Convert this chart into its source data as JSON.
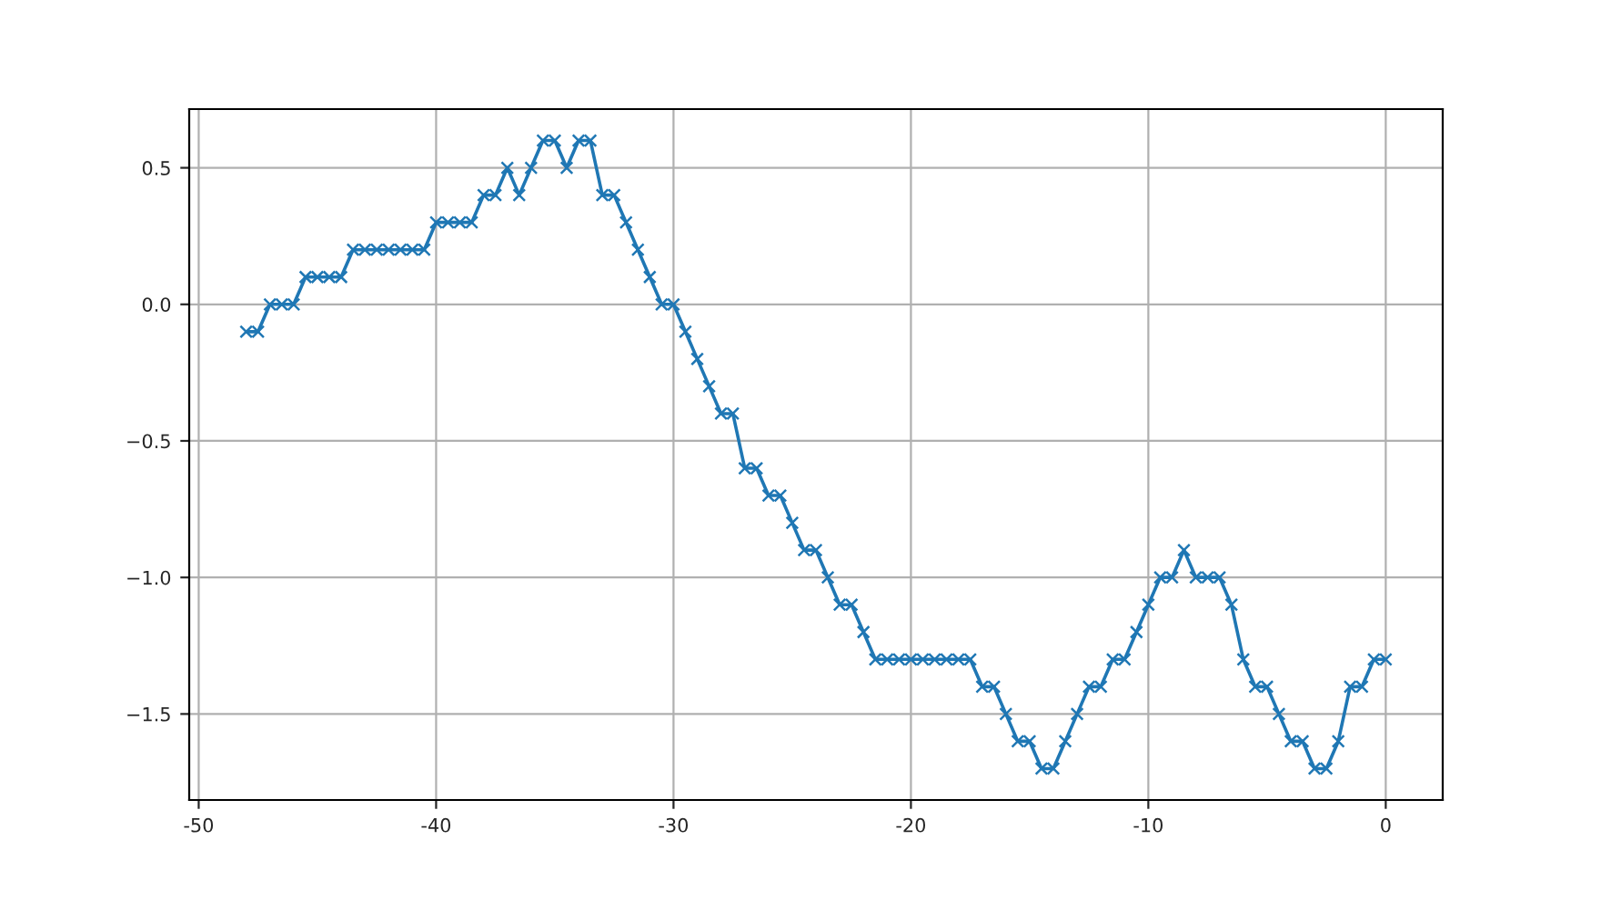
{
  "chart_data": {
    "type": "line",
    "marker": "cross",
    "line_style": "solid",
    "grid": true,
    "x": [
      -48,
      -47.5,
      -47,
      -46.5,
      -46,
      -45.5,
      -45,
      -44.5,
      -44,
      -43.5,
      -43,
      -42.5,
      -42,
      -41.5,
      -41,
      -40.5,
      -40,
      -39.5,
      -39,
      -38.5,
      -38,
      -37.5,
      -37,
      -36.5,
      -36,
      -35.5,
      -35,
      -34.5,
      -34,
      -33.5,
      -33,
      -32.5,
      -32,
      -31.5,
      -31,
      -30.5,
      -30,
      -29.5,
      -29,
      -28.5,
      -28,
      -27.5,
      -27,
      -26.5,
      -26,
      -25.5,
      -25,
      -24.5,
      -24,
      -23.5,
      -23,
      -22.5,
      -22,
      -21.5,
      -21,
      -20.5,
      -20,
      -19.5,
      -19,
      -18.5,
      -18,
      -17.5,
      -17,
      -16.5,
      -16,
      -15.5,
      -15,
      -14.5,
      -14,
      -13.5,
      -13,
      -12.5,
      -12,
      -11.5,
      -11,
      -10.5,
      -10,
      -9.5,
      -9,
      -8.5,
      -8,
      -7.5,
      -7,
      -6.5,
      -6,
      -5.5,
      -5,
      -4.5,
      -4,
      -3.5,
      -3,
      -2.5,
      -2,
      -1.5,
      -1,
      -0.5,
      0
    ],
    "series": [
      {
        "color": "#1f77b4",
        "values": [
          -0.1,
          -0.1,
          0,
          0,
          0,
          0.1,
          0.1,
          0.1,
          0.1,
          0.2,
          0.2,
          0.2,
          0.2,
          0.2,
          0.2,
          0.2,
          0.3,
          0.3,
          0.3,
          0.3,
          0.4,
          0.4,
          0.5,
          0.4,
          0.5,
          0.6,
          0.6,
          0.5,
          0.6,
          0.6,
          0.4,
          0.4,
          0.3,
          0.2,
          0.1,
          0,
          0,
          -0.1,
          -0.2,
          -0.3,
          -0.4,
          -0.4,
          -0.6,
          -0.6,
          -0.7,
          -0.7,
          -0.8,
          -0.9,
          -0.9,
          -1.0,
          -1.1,
          -1.1,
          -1.2,
          -1.3,
          -1.3,
          -1.3,
          -1.3,
          -1.3,
          -1.3,
          -1.3,
          -1.3,
          -1.3,
          -1.4,
          -1.4,
          -1.5,
          -1.6,
          -1.6,
          -1.7,
          -1.7,
          -1.6,
          -1.5,
          -1.4,
          -1.4,
          -1.3,
          -1.3,
          -1.2,
          -1.1,
          -1.0,
          -1.0,
          -0.9,
          -1.0,
          -1.0,
          -1.0,
          -1.1,
          -1.3,
          -1.4,
          -1.4,
          -1.5,
          -1.6,
          -1.6,
          -1.7,
          -1.7,
          -1.6,
          -1.4,
          -1.4,
          -1.3,
          -1.3
        ]
      }
    ],
    "xlim": [
      -50.4,
      2.4
    ],
    "xticks": [
      -50,
      -40,
      -30,
      -20,
      -10,
      0
    ],
    "ylim": [
      -1.815,
      0.715
    ],
    "yticks": [
      {
        "value": -1.5,
        "label": "−1.5"
      },
      {
        "value": -1.0,
        "label": "−1.0"
      },
      {
        "value": -0.5,
        "label": "−0.5"
      },
      {
        "value": 0.0,
        "label": "0.0"
      },
      {
        "value": 0.5,
        "label": "0.5"
      }
    ]
  }
}
